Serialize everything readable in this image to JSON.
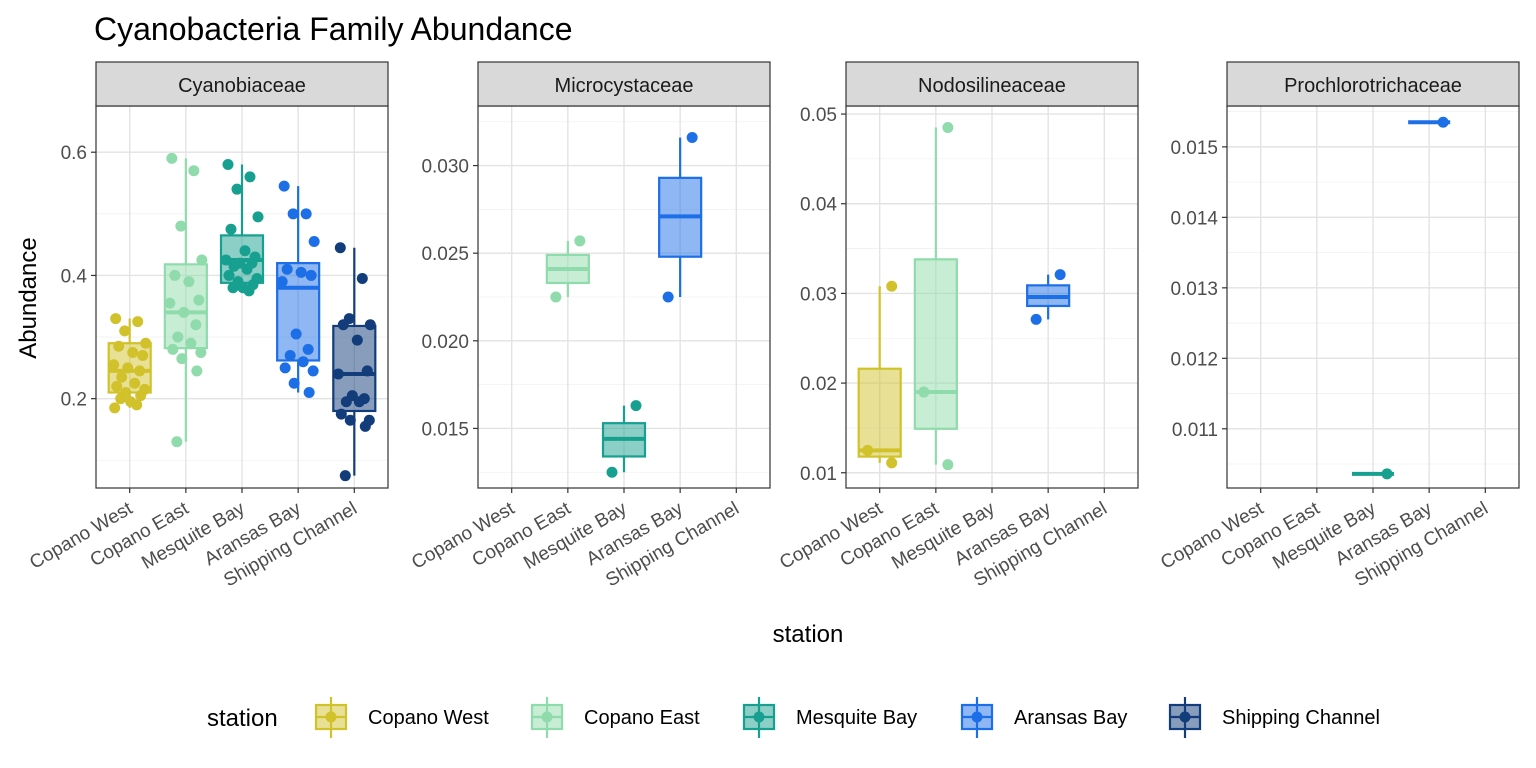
{
  "chart_data": {
    "type": "box",
    "title": "Cyanobacteria Family Abundance",
    "xlabel": "station",
    "ylabel": "Abundance",
    "categories": [
      "Copano West",
      "Copano East",
      "Mesquite Bay",
      "Aransas Bay",
      "Shipping Channel"
    ],
    "colors": {
      "Copano West": "#d1c22c",
      "Copano East": "#8fdbab",
      "Mesquite Bay": "#17a08f",
      "Aransas Bay": "#1d6fe8",
      "Shipping Channel": "#123c7a"
    },
    "legend": {
      "title": "station",
      "position": "bottom",
      "entries": [
        "Copano West",
        "Copano East",
        "Mesquite Bay",
        "Aransas Bay",
        "Shipping Channel"
      ]
    },
    "panels": [
      {
        "name": "Cyanobiaceae",
        "ylim": [
          0.055,
          0.675
        ],
        "yticks": [
          0.2,
          0.4,
          0.6
        ],
        "ytick_labels": [
          "0.2",
          "0.4",
          "0.6"
        ],
        "groups": [
          {
            "station": "Copano West",
            "q1": 0.21,
            "median": 0.245,
            "q3": 0.29,
            "whisker_low": 0.185,
            "whisker_high": 0.33,
            "points": [
              0.33,
              0.325,
              0.31,
              0.29,
              0.285,
              0.275,
              0.27,
              0.255,
              0.25,
              0.245,
              0.235,
              0.225,
              0.22,
              0.215,
              0.21,
              0.205,
              0.2,
              0.195,
              0.19,
              0.185
            ]
          },
          {
            "station": "Copano East",
            "q1": 0.282,
            "median": 0.34,
            "q3": 0.418,
            "whisker_low": 0.13,
            "whisker_high": 0.59,
            "points": [
              0.59,
              0.57,
              0.48,
              0.425,
              0.4,
              0.39,
              0.36,
              0.355,
              0.34,
              0.32,
              0.3,
              0.29,
              0.28,
              0.275,
              0.265,
              0.245,
              0.13
            ]
          },
          {
            "station": "Mesquite Bay",
            "q1": 0.388,
            "median": 0.425,
            "q3": 0.465,
            "whisker_low": 0.38,
            "whisker_high": 0.58,
            "points": [
              0.58,
              0.56,
              0.54,
              0.495,
              0.475,
              0.44,
              0.43,
              0.425,
              0.42,
              0.42,
              0.415,
              0.41,
              0.4,
              0.395,
              0.39,
              0.385,
              0.38,
              0.38,
              0.375
            ]
          },
          {
            "station": "Aransas Bay",
            "q1": 0.262,
            "median": 0.38,
            "q3": 0.42,
            "whisker_low": 0.21,
            "whisker_high": 0.545,
            "points": [
              0.545,
              0.5,
              0.5,
              0.455,
              0.41,
              0.405,
              0.4,
              0.39,
              0.305,
              0.28,
              0.27,
              0.26,
              0.25,
              0.245,
              0.225,
              0.21
            ]
          },
          {
            "station": "Shipping Channel",
            "q1": 0.18,
            "median": 0.24,
            "q3": 0.318,
            "whisker_low": 0.075,
            "whisker_high": 0.445,
            "points": [
              0.445,
              0.395,
              0.33,
              0.32,
              0.32,
              0.295,
              0.245,
              0.24,
              0.205,
              0.2,
              0.195,
              0.195,
              0.175,
              0.165,
              0.165,
              0.155,
              0.075
            ]
          }
        ]
      },
      {
        "name": "Microcystaceae",
        "ylim": [
          0.0116,
          0.0334
        ],
        "yticks": [
          0.015,
          0.02,
          0.025,
          0.03
        ],
        "ytick_labels": [
          "0.015",
          "0.020",
          "0.025",
          "0.030"
        ],
        "groups": [
          {
            "station": "Copano East",
            "q1": 0.0233,
            "median": 0.0241,
            "q3": 0.0249,
            "whisker_low": 0.0225,
            "whisker_high": 0.0257,
            "points": [
              0.0257,
              0.0225
            ]
          },
          {
            "station": "Mesquite Bay",
            "q1": 0.0134,
            "median": 0.0144,
            "q3": 0.0153,
            "whisker_low": 0.0125,
            "whisker_high": 0.0163,
            "points": [
              0.0163,
              0.0125
            ]
          },
          {
            "station": "Aransas Bay",
            "q1": 0.0248,
            "median": 0.0271,
            "q3": 0.0293,
            "whisker_low": 0.0225,
            "whisker_high": 0.0316,
            "points": [
              0.0316,
              0.0225
            ]
          }
        ]
      },
      {
        "name": "Nodosilineaceae",
        "ylim": [
          0.0083,
          0.0509
        ],
        "yticks": [
          0.01,
          0.02,
          0.03,
          0.04,
          0.05
        ],
        "ytick_labels": [
          "0.01",
          "0.02",
          "0.03",
          "0.04",
          "0.05"
        ],
        "groups": [
          {
            "station": "Copano West",
            "q1": 0.0118,
            "median": 0.0125,
            "q3": 0.0216,
            "whisker_low": 0.0111,
            "whisker_high": 0.0308,
            "points": [
              0.0308,
              0.0125,
              0.0111
            ]
          },
          {
            "station": "Copano East",
            "q1": 0.0149,
            "median": 0.019,
            "q3": 0.0338,
            "whisker_low": 0.0109,
            "whisker_high": 0.0485,
            "points": [
              0.0485,
              0.019,
              0.0109
            ]
          },
          {
            "station": "Aransas Bay",
            "q1": 0.0286,
            "median": 0.0296,
            "q3": 0.0309,
            "whisker_low": 0.0271,
            "whisker_high": 0.0321,
            "points": [
              0.0321,
              0.0271
            ]
          }
        ]
      },
      {
        "name": "Prochlorotrichaceae",
        "ylim": [
          0.01016,
          0.01558
        ],
        "yticks": [
          0.011,
          0.012,
          0.013,
          0.014,
          0.015
        ],
        "ytick_labels": [
          "0.011",
          "0.012",
          "0.013",
          "0.014",
          "0.015"
        ],
        "groups": [
          {
            "station": "Mesquite Bay",
            "q1": 0.01036,
            "median": 0.01036,
            "q3": 0.01036,
            "whisker_low": 0.01036,
            "whisker_high": 0.01036,
            "points": [
              0.01036
            ]
          },
          {
            "station": "Aransas Bay",
            "q1": 0.01535,
            "median": 0.01535,
            "q3": 0.01535,
            "whisker_low": 0.01535,
            "whisker_high": 0.01535,
            "points": [
              0.01535
            ]
          }
        ]
      }
    ]
  }
}
